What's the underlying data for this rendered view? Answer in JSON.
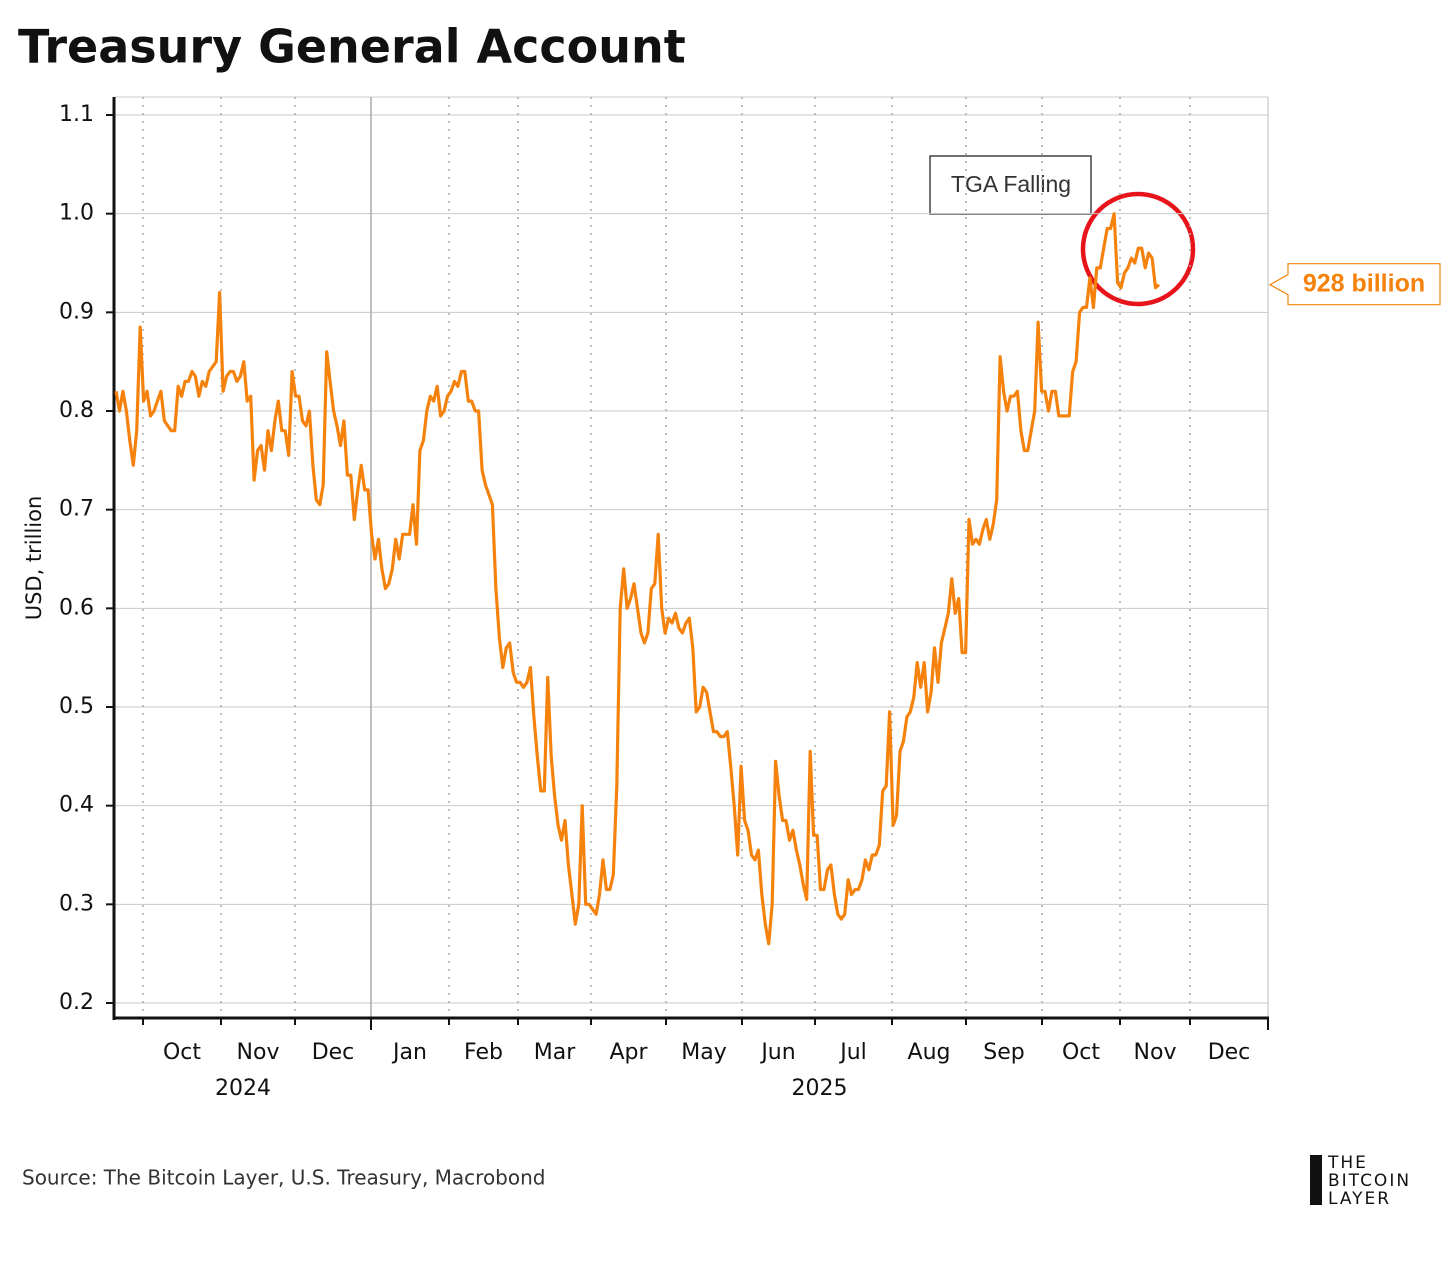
{
  "chart_data": {
    "type": "line",
    "title": "Treasury General Account",
    "ylabel": "USD, trillion",
    "source": "Source: The Bitcoin Layer, U.S. Treasury, Macrobond",
    "logo": [
      "THE",
      "BITCOIN",
      "LAYER"
    ],
    "annotation": "TGA Falling",
    "end_label": {
      "value": 0.928,
      "label": "928 billion"
    },
    "color": "#f5820d",
    "ylim": [
      0.18,
      1.12
    ],
    "yticks": [
      0.2,
      0.3,
      0.4,
      0.5,
      0.6,
      0.7,
      0.8,
      0.9,
      {
        "value": 1,
        "label": "1.0"
      },
      1.1
    ],
    "months": [
      "Oct",
      "Nov",
      "Dec",
      "Jan",
      "Feb",
      "Mar",
      "Apr",
      "May",
      "Jun",
      "Jul",
      "Aug",
      "Sep",
      "Oct",
      "Nov",
      "Dec"
    ],
    "years": [
      "2024",
      "2025"
    ],
    "grid": true,
    "values": [
      0.82,
      0.8,
      0.82,
      0.8,
      0.77,
      0.745,
      0.78,
      0.885,
      0.81,
      0.82,
      0.795,
      0.8,
      0.81,
      0.82,
      0.79,
      0.785,
      0.78,
      0.78,
      0.825,
      0.815,
      0.83,
      0.83,
      0.84,
      0.835,
      0.815,
      0.83,
      0.825,
      0.84,
      0.845,
      0.85,
      0.92,
      0.82,
      0.835,
      0.84,
      0.84,
      0.83,
      0.835,
      0.85,
      0.81,
      0.815,
      0.73,
      0.76,
      0.765,
      0.74,
      0.78,
      0.76,
      0.79,
      0.81,
      0.78,
      0.78,
      0.755,
      0.84,
      0.815,
      0.815,
      0.79,
      0.785,
      0.8,
      0.745,
      0.71,
      0.705,
      0.725,
      0.86,
      0.83,
      0.8,
      0.785,
      0.765,
      0.79,
      0.735,
      0.735,
      0.69,
      0.72,
      0.745,
      0.72,
      0.72,
      0.675,
      0.65,
      0.67,
      0.64,
      0.62,
      0.625,
      0.64,
      0.67,
      0.65,
      0.675,
      0.675,
      0.675,
      0.705,
      0.665,
      0.76,
      0.77,
      0.8,
      0.815,
      0.81,
      0.825,
      0.795,
      0.8,
      0.815,
      0.82,
      0.83,
      0.825,
      0.84,
      0.84,
      0.81,
      0.81,
      0.8,
      0.8,
      0.74,
      0.725,
      0.715,
      0.705,
      0.62,
      0.57,
      0.54,
      0.56,
      0.565,
      0.535,
      0.525,
      0.525,
      0.52,
      0.525,
      0.54,
      0.49,
      0.45,
      0.415,
      0.415,
      0.53,
      0.45,
      0.41,
      0.38,
      0.365,
      0.385,
      0.34,
      0.31,
      0.28,
      0.3,
      0.4,
      0.3,
      0.3,
      0.295,
      0.29,
      0.31,
      0.345,
      0.315,
      0.315,
      0.33,
      0.42,
      0.6,
      0.64,
      0.6,
      0.61,
      0.625,
      0.6,
      0.575,
      0.565,
      0.575,
      0.62,
      0.625,
      0.675,
      0.6,
      0.575,
      0.59,
      0.585,
      0.595,
      0.58,
      0.575,
      0.585,
      0.59,
      0.56,
      0.495,
      0.5,
      0.52,
      0.515,
      0.495,
      0.475,
      0.475,
      0.47,
      0.47,
      0.475,
      0.44,
      0.4,
      0.35,
      0.44,
      0.385,
      0.375,
      0.35,
      0.345,
      0.355,
      0.31,
      0.28,
      0.26,
      0.3,
      0.445,
      0.41,
      0.385,
      0.385,
      0.365,
      0.375,
      0.355,
      0.34,
      0.32,
      0.305,
      0.455,
      0.37,
      0.37,
      0.315,
      0.315,
      0.335,
      0.34,
      0.31,
      0.29,
      0.285,
      0.29,
      0.325,
      0.31,
      0.315,
      0.315,
      0.325,
      0.345,
      0.335,
      0.35,
      0.35,
      0.36,
      0.415,
      0.42,
      0.495,
      0.38,
      0.39,
      0.455,
      0.465,
      0.49,
      0.495,
      0.51,
      0.545,
      0.52,
      0.545,
      0.495,
      0.515,
      0.56,
      0.525,
      0.565,
      0.58,
      0.595,
      0.63,
      0.595,
      0.61,
      0.555,
      0.555,
      0.69,
      0.665,
      0.67,
      0.665,
      0.68,
      0.69,
      0.67,
      0.685,
      0.71,
      0.855,
      0.82,
      0.8,
      0.815,
      0.815,
      0.82,
      0.78,
      0.76,
      0.76,
      0.78,
      0.8,
      0.89,
      0.82,
      0.82,
      0.8,
      0.82,
      0.82,
      0.795,
      0.795,
      0.795,
      0.795,
      0.84,
      0.85,
      0.9,
      0.905,
      0.905,
      0.935,
      0.905,
      0.945,
      0.945,
      0.965,
      0.985,
      0.985,
      1.0,
      0.93,
      0.925,
      0.94,
      0.945,
      0.955,
      0.95,
      0.965,
      0.965,
      0.945,
      0.96,
      0.955,
      0.925,
      0.928
    ]
  }
}
